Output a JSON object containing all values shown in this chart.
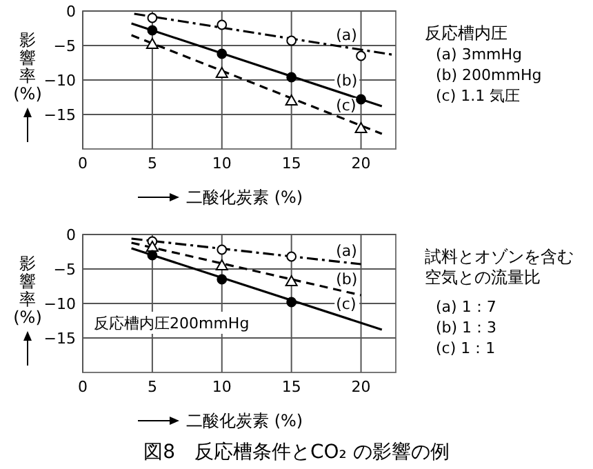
{
  "chart_data": [
    {
      "type": "line",
      "xlabel": "二酸化炭素 (%)",
      "ylabel": "影響率(%)",
      "legend_title": "反応槽内圧",
      "annotations": [
        "(a) 3mmHg",
        "(b) 200mmHg",
        "(c) 1.1 気圧"
      ],
      "xlim": [
        0,
        22.5
      ],
      "ylim": [
        -20,
        0
      ],
      "xticks": [
        0,
        5,
        10,
        15,
        20
      ],
      "yticks": [
        0,
        -5,
        -10,
        -15
      ],
      "grid": true,
      "series": [
        {
          "type": "line",
          "name": "(a)",
          "color": "#000000",
          "line_style": "dashdot",
          "marker": "none",
          "x": [
            3.7,
            22.5
          ],
          "values": [
            -0.4,
            -6.4
          ]
        },
        {
          "type": "line",
          "name": "(b)",
          "color": "#000000",
          "line_style": "solid",
          "marker": "none",
          "x": [
            3.5,
            21.5
          ],
          "values": [
            -1.8,
            -13.8
          ]
        },
        {
          "type": "line",
          "name": "(c)",
          "color": "#000000",
          "line_style": "dashed",
          "marker": "none",
          "x": [
            3.5,
            21.5
          ],
          "values": [
            -3.5,
            -17.8
          ]
        },
        {
          "type": "scatter",
          "color": "#ffffff",
          "marker": "circle",
          "x": [
            5,
            10,
            15,
            20
          ],
          "values": [
            -1,
            -2,
            -4.3,
            -6.5
          ]
        },
        {
          "type": "scatter",
          "color": "#000000",
          "marker": "circle",
          "x": [
            5,
            10,
            15,
            20
          ],
          "values": [
            -2.8,
            -6.2,
            -9.6,
            -12.8
          ]
        },
        {
          "type": "scatter",
          "color": "#ffffff",
          "marker": "triangle",
          "x": [
            5,
            10,
            15,
            20
          ],
          "values": [
            -4.8,
            -9,
            -13,
            -17
          ]
        }
      ]
    },
    {
      "type": "line",
      "title": "図8　反応槽条件とCO₂ の影響の例",
      "xlabel": "二酸化炭素 (%)",
      "ylabel": "影響率(%)",
      "legend_title": "試料とオゾンを含む空気との流量比",
      "subtitle": "反応槽内圧200mmHg",
      "annotations": [
        "(a) 1：7",
        "(b) 1：3",
        "(c) 1：1"
      ],
      "xlim": [
        0,
        22.5
      ],
      "ylim": [
        -20,
        0
      ],
      "xticks": [
        0,
        5,
        10,
        15,
        20
      ],
      "yticks": [
        0,
        -5,
        -10,
        -15
      ],
      "grid": true,
      "series": [
        {
          "type": "line",
          "name": "(a)",
          "color": "#000000",
          "line_style": "dashdot",
          "marker": "none",
          "x": [
            3.5,
            20
          ],
          "values": [
            -0.6,
            -4.3
          ]
        },
        {
          "type": "line",
          "name": "(b)",
          "color": "#000000",
          "line_style": "dashed",
          "marker": "none",
          "x": [
            3.5,
            20
          ],
          "values": [
            -1.2,
            -8.8
          ]
        },
        {
          "type": "line",
          "name": "(c)",
          "color": "#000000",
          "line_style": "solid",
          "marker": "none",
          "x": [
            3.5,
            21.5
          ],
          "values": [
            -2,
            -13.8
          ]
        },
        {
          "type": "scatter",
          "color": "#ffffff",
          "marker": "circle",
          "x": [
            5,
            10,
            15
          ],
          "values": [
            -1,
            -2.2,
            -3.2
          ]
        },
        {
          "type": "scatter",
          "color": "#ffffff",
          "marker": "triangle",
          "x": [
            5,
            10,
            15
          ],
          "values": [
            -1.8,
            -4.5,
            -6.8
          ]
        },
        {
          "type": "scatter",
          "color": "#000000",
          "marker": "circle",
          "x": [
            5,
            10,
            15
          ],
          "values": [
            -3,
            -6.5,
            -9.8
          ]
        }
      ]
    }
  ]
}
